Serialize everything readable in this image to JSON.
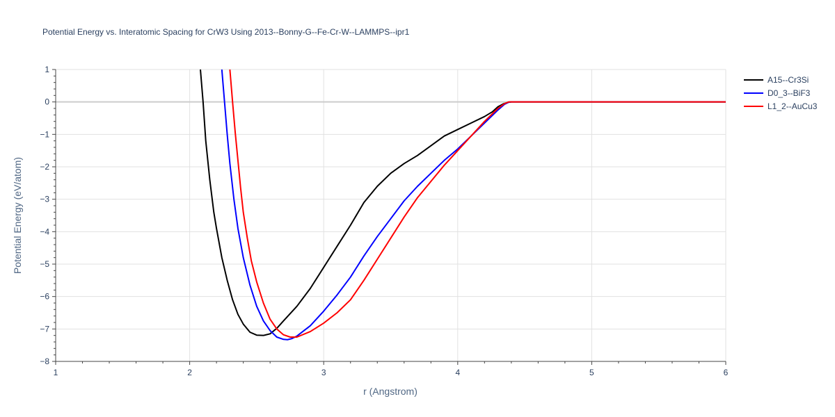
{
  "chart_data": {
    "type": "line",
    "title": "Potential Energy vs. Interatomic Spacing for CrW3 Using 2013--Bonny-G--Fe-Cr-W--LAMMPS--ipr1",
    "xlabel": "r (Angstrom)",
    "ylabel": "Potential Energy (eV/atom)",
    "xlim": [
      1,
      6
    ],
    "ylim": [
      -8,
      1
    ],
    "xticks": [
      1,
      2,
      3,
      4,
      5,
      6
    ],
    "yticks": [
      1,
      0,
      -1,
      -2,
      -3,
      -4,
      -5,
      -6,
      -7,
      -8
    ],
    "xtick_labels": [
      "1",
      "2",
      "3",
      "4",
      "5",
      "6"
    ],
    "ytick_labels": [
      "1",
      "0",
      "−1",
      "−2",
      "−3",
      "−4",
      "−5",
      "−6",
      "−7",
      "−8"
    ],
    "grid": true,
    "legend_position": "top-right",
    "series": [
      {
        "name": "A15--Cr3Si",
        "color": "#000000",
        "x": [
          2.08,
          2.1,
          2.12,
          2.15,
          2.18,
          2.2,
          2.24,
          2.28,
          2.32,
          2.36,
          2.4,
          2.45,
          2.5,
          2.55,
          2.6,
          2.65,
          2.7,
          2.8,
          2.9,
          3.0,
          3.1,
          3.2,
          3.3,
          3.4,
          3.5,
          3.6,
          3.7,
          3.8,
          3.9,
          4.0,
          4.1,
          4.2,
          4.26,
          4.3,
          4.34,
          4.38,
          4.4,
          4.5,
          5.0,
          6.0
        ],
        "y": [
          1.0,
          0.0,
          -1.2,
          -2.4,
          -3.4,
          -3.9,
          -4.8,
          -5.5,
          -6.1,
          -6.55,
          -6.85,
          -7.1,
          -7.19,
          -7.2,
          -7.15,
          -6.98,
          -6.75,
          -6.3,
          -5.75,
          -5.1,
          -4.45,
          -3.8,
          -3.1,
          -2.6,
          -2.2,
          -1.9,
          -1.65,
          -1.35,
          -1.05,
          -0.85,
          -0.65,
          -0.45,
          -0.3,
          -0.15,
          -0.06,
          -0.01,
          0.0,
          0.0,
          0.0,
          0.0
        ]
      },
      {
        "name": "D0_3--BiF3",
        "color": "#0000ff",
        "x": [
          2.24,
          2.26,
          2.28,
          2.3,
          2.33,
          2.36,
          2.4,
          2.45,
          2.5,
          2.55,
          2.6,
          2.65,
          2.7,
          2.73,
          2.76,
          2.8,
          2.9,
          3.0,
          3.1,
          3.2,
          3.3,
          3.4,
          3.5,
          3.6,
          3.7,
          3.8,
          3.9,
          4.0,
          4.1,
          4.2,
          4.3,
          4.35,
          4.38,
          4.4,
          4.5,
          5.0,
          6.0
        ],
        "y": [
          1.0,
          0.0,
          -1.0,
          -1.9,
          -3.0,
          -3.9,
          -4.8,
          -5.65,
          -6.3,
          -6.75,
          -7.05,
          -7.25,
          -7.32,
          -7.33,
          -7.3,
          -7.22,
          -6.9,
          -6.45,
          -5.95,
          -5.4,
          -4.75,
          -4.15,
          -3.6,
          -3.05,
          -2.6,
          -2.2,
          -1.8,
          -1.45,
          -1.05,
          -0.65,
          -0.25,
          -0.07,
          -0.01,
          0.0,
          0.0,
          0.0,
          0.0
        ]
      },
      {
        "name": "L1_2--AuCu3",
        "color": "#ff0000",
        "x": [
          2.3,
          2.32,
          2.34,
          2.36,
          2.38,
          2.4,
          2.43,
          2.46,
          2.5,
          2.55,
          2.6,
          2.65,
          2.7,
          2.75,
          2.8,
          2.9,
          3.0,
          3.1,
          3.2,
          3.3,
          3.4,
          3.5,
          3.6,
          3.7,
          3.8,
          3.9,
          4.0,
          4.1,
          4.2,
          4.3,
          4.35,
          4.38,
          4.4,
          4.5,
          5.0,
          6.0
        ],
        "y": [
          1.0,
          0.0,
          -0.95,
          -1.8,
          -2.65,
          -3.4,
          -4.2,
          -4.9,
          -5.55,
          -6.2,
          -6.7,
          -7.0,
          -7.18,
          -7.25,
          -7.25,
          -7.08,
          -6.82,
          -6.5,
          -6.1,
          -5.5,
          -4.85,
          -4.2,
          -3.55,
          -2.95,
          -2.45,
          -1.95,
          -1.5,
          -1.05,
          -0.6,
          -0.2,
          -0.05,
          0.0,
          0.0,
          0.0,
          0.0,
          0.0
        ]
      }
    ]
  }
}
